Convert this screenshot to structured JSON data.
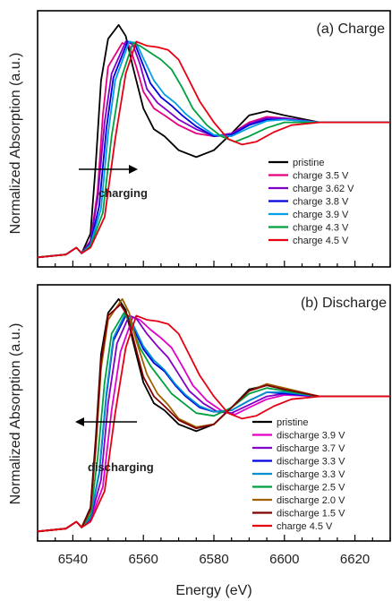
{
  "figure": {
    "xlabel": "Energy (eV)",
    "ylabel": "Normalized Absorption (a.u.)",
    "xticks": [
      6540,
      6560,
      6580,
      6600,
      6620
    ],
    "xlim": [
      6530,
      6630
    ]
  },
  "chart_data": [
    {
      "type": "line",
      "title": "(a) Charge",
      "annotation": "charging",
      "arrow_direction": "right",
      "xlim": [
        6530,
        6630
      ],
      "ylim": [
        0,
        1.75
      ],
      "legend_position": "bottom-right",
      "series": [
        {
          "name": "pristine",
          "color": "#000000",
          "x": [
            6530,
            6538,
            6541,
            6542.5,
            6545,
            6546.5,
            6548,
            6550,
            6553,
            6555,
            6557,
            6560,
            6563,
            6566,
            6570,
            6575,
            6580,
            6585,
            6590,
            6595,
            6600,
            6610,
            6620,
            6630
          ],
          "y": [
            0.03,
            0.05,
            0.1,
            0.06,
            0.2,
            0.7,
            1.3,
            1.6,
            1.7,
            1.62,
            1.4,
            1.1,
            0.95,
            0.9,
            0.8,
            0.75,
            0.8,
            0.92,
            1.05,
            1.08,
            1.05,
            1.0,
            1.0,
            1.0
          ]
        },
        {
          "name": "charge 3.5 V",
          "color": "#e4007f",
          "x": [
            6530,
            6538,
            6541,
            6542.5,
            6545,
            6547,
            6548.5,
            6550,
            6554,
            6556,
            6558,
            6560,
            6563,
            6566,
            6570,
            6575,
            6580,
            6585,
            6590,
            6595,
            6600,
            6610,
            6620,
            6630
          ],
          "y": [
            0.03,
            0.05,
            0.1,
            0.06,
            0.15,
            0.5,
            1.05,
            1.4,
            1.57,
            1.55,
            1.4,
            1.22,
            1.1,
            1.05,
            0.98,
            0.92,
            0.9,
            0.92,
            1.0,
            1.04,
            1.03,
            1.0,
            1.0,
            1.0
          ]
        },
        {
          "name": "charge 3.62 V",
          "color": "#7f00c8",
          "x": [
            6530,
            6538,
            6541,
            6542.5,
            6545,
            6547,
            6549,
            6551,
            6555,
            6557,
            6559,
            6561,
            6564,
            6567,
            6570,
            6575,
            6580,
            6585,
            6590,
            6595,
            6600,
            6610,
            6620,
            6630
          ],
          "y": [
            0.03,
            0.05,
            0.1,
            0.06,
            0.14,
            0.45,
            1.0,
            1.35,
            1.58,
            1.56,
            1.42,
            1.24,
            1.14,
            1.08,
            1.02,
            0.95,
            0.9,
            0.92,
            0.99,
            1.03,
            1.03,
            1.0,
            1.0,
            1.0
          ]
        },
        {
          "name": "charge 3.8 V",
          "color": "#0000dd",
          "x": [
            6530,
            6538,
            6541,
            6542.5,
            6545,
            6547.5,
            6549.5,
            6551.5,
            6555.5,
            6557.5,
            6559.5,
            6562,
            6565,
            6568,
            6571,
            6575,
            6580,
            6585,
            6590,
            6595,
            6600,
            6610,
            6620,
            6630
          ],
          "y": [
            0.03,
            0.05,
            0.1,
            0.06,
            0.13,
            0.4,
            0.95,
            1.32,
            1.58,
            1.57,
            1.44,
            1.28,
            1.18,
            1.12,
            1.05,
            0.97,
            0.9,
            0.91,
            0.98,
            1.02,
            1.02,
            1.0,
            1.0,
            1.0
          ]
        },
        {
          "name": "charge 3.9 V",
          "color": "#00a0e9",
          "x": [
            6530,
            6538,
            6541,
            6542.5,
            6545,
            6548,
            6550,
            6552,
            6556,
            6558,
            6560,
            6563,
            6566,
            6569,
            6572,
            6576,
            6580,
            6585,
            6590,
            6595,
            6600,
            6610,
            6620,
            6630
          ],
          "y": [
            0.03,
            0.05,
            0.1,
            0.06,
            0.12,
            0.38,
            0.92,
            1.3,
            1.58,
            1.57,
            1.46,
            1.3,
            1.2,
            1.14,
            1.06,
            0.98,
            0.91,
            0.9,
            0.96,
            1.01,
            1.02,
            1.0,
            1.0,
            1.0
          ]
        },
        {
          "name": "charge 4.3 V",
          "color": "#00a040",
          "x": [
            6530,
            6538,
            6541,
            6542.5,
            6545,
            6548.5,
            6551,
            6553.5,
            6557,
            6559,
            6562,
            6565,
            6568,
            6571,
            6574,
            6578,
            6582,
            6586,
            6590,
            6595,
            6600,
            6610,
            6620,
            6630
          ],
          "y": [
            0.03,
            0.05,
            0.1,
            0.06,
            0.11,
            0.35,
            0.9,
            1.3,
            1.57,
            1.55,
            1.5,
            1.45,
            1.38,
            1.25,
            1.1,
            0.98,
            0.9,
            0.86,
            0.9,
            0.96,
            1.0,
            1.0,
            1.0,
            1.0
          ]
        },
        {
          "name": "charge 4.5 V",
          "color": "#e60012",
          "x": [
            6530,
            6538,
            6541,
            6542.5,
            6545,
            6549,
            6552,
            6555,
            6558,
            6561,
            6564,
            6567,
            6570,
            6573,
            6576,
            6580,
            6584,
            6588,
            6592,
            6597,
            6602,
            6610,
            6620,
            6630
          ],
          "y": [
            0.03,
            0.05,
            0.1,
            0.06,
            0.1,
            0.32,
            0.88,
            1.35,
            1.58,
            1.55,
            1.54,
            1.52,
            1.45,
            1.3,
            1.15,
            1.0,
            0.88,
            0.84,
            0.86,
            0.93,
            0.98,
            1.0,
            1.0,
            1.0
          ]
        }
      ]
    },
    {
      "type": "line",
      "title": "(b) Discharge",
      "annotation": "discharging",
      "arrow_direction": "left",
      "xlim": [
        6530,
        6630
      ],
      "ylim": [
        0,
        1.75
      ],
      "legend_position": "bottom-right",
      "series": [
        {
          "name": "pristine",
          "color": "#000000",
          "x": [
            6530,
            6538,
            6541,
            6542.5,
            6545,
            6546.5,
            6548,
            6550,
            6553,
            6555,
            6557,
            6560,
            6563,
            6566,
            6570,
            6575,
            6580,
            6585,
            6590,
            6595,
            6600,
            6610,
            6620,
            6630
          ],
          "y": [
            0.03,
            0.05,
            0.1,
            0.06,
            0.2,
            0.7,
            1.3,
            1.6,
            1.7,
            1.62,
            1.4,
            1.1,
            0.95,
            0.9,
            0.8,
            0.75,
            0.8,
            0.92,
            1.05,
            1.08,
            1.05,
            1.0,
            1.0,
            1.0
          ]
        },
        {
          "name": "discharge 3.9 V",
          "color": "#e000c8",
          "x": [
            6530,
            6538,
            6541,
            6542.5,
            6545,
            6548.5,
            6551,
            6553.5,
            6557,
            6559,
            6562,
            6565,
            6568,
            6571,
            6574,
            6578,
            6582,
            6586,
            6590,
            6595,
            6600,
            6610,
            6620,
            6630
          ],
          "y": [
            0.03,
            0.05,
            0.1,
            0.06,
            0.11,
            0.35,
            0.9,
            1.32,
            1.57,
            1.55,
            1.48,
            1.42,
            1.35,
            1.22,
            1.08,
            0.97,
            0.9,
            0.87,
            0.92,
            0.98,
            1.01,
            1.0,
            1.0,
            1.0
          ]
        },
        {
          "name": "discharge 3.7 V",
          "color": "#8000c8",
          "x": [
            6530,
            6538,
            6541,
            6542.5,
            6545,
            6548,
            6550,
            6552.5,
            6556,
            6558,
            6561,
            6564,
            6567,
            6570,
            6573,
            6577,
            6581,
            6585,
            6590,
            6595,
            6600,
            6610,
            6620,
            6630
          ],
          "y": [
            0.03,
            0.05,
            0.1,
            0.06,
            0.12,
            0.4,
            0.95,
            1.38,
            1.58,
            1.56,
            1.45,
            1.36,
            1.28,
            1.16,
            1.04,
            0.95,
            0.89,
            0.88,
            0.94,
            1.0,
            1.02,
            1.0,
            1.0,
            1.0
          ]
        },
        {
          "name": "discharge 3.3 V",
          "color": "#0000dd",
          "x": [
            6530,
            6538,
            6541,
            6542.5,
            6545,
            6547.5,
            6549.5,
            6551.5,
            6555,
            6557,
            6560,
            6563,
            6566,
            6569,
            6572,
            6576,
            6580,
            6585,
            6590,
            6595,
            6600,
            6610,
            6620,
            6630
          ],
          "y": [
            0.03,
            0.05,
            0.1,
            0.06,
            0.13,
            0.45,
            1.0,
            1.4,
            1.58,
            1.5,
            1.34,
            1.24,
            1.18,
            1.08,
            1.0,
            0.92,
            0.89,
            0.9,
            0.97,
            1.03,
            1.02,
            1.0,
            1.0,
            1.0
          ]
        },
        {
          "name": "discharge 3.3 V",
          "color": "#0090d0",
          "x": [
            6530,
            6538,
            6541,
            6542.5,
            6545,
            6547.5,
            6549.5,
            6551.5,
            6555,
            6557,
            6560,
            6563,
            6566,
            6569,
            6572,
            6576,
            6580,
            6585,
            6590,
            6595,
            6600,
            6610,
            6620,
            6630
          ],
          "y": [
            0.03,
            0.05,
            0.1,
            0.06,
            0.13,
            0.46,
            1.02,
            1.42,
            1.6,
            1.52,
            1.36,
            1.26,
            1.19,
            1.09,
            1.01,
            0.93,
            0.89,
            0.9,
            0.97,
            1.03,
            1.03,
            1.0,
            1.0,
            1.0
          ]
        },
        {
          "name": "discharge 2.5 V",
          "color": "#00a040",
          "x": [
            6530,
            6538,
            6541,
            6542.5,
            6545,
            6547,
            6549,
            6551,
            6554.5,
            6556.5,
            6559,
            6562,
            6565,
            6568,
            6571,
            6575,
            6580,
            6585,
            6590,
            6595,
            6600,
            6610,
            6620,
            6630
          ],
          "y": [
            0.03,
            0.05,
            0.1,
            0.06,
            0.15,
            0.55,
            1.1,
            1.45,
            1.6,
            1.52,
            1.35,
            1.22,
            1.12,
            1.02,
            0.96,
            0.88,
            0.86,
            0.92,
            1.02,
            1.06,
            1.04,
            1.0,
            1.0,
            1.0
          ]
        },
        {
          "name": "discharge 2.0 V",
          "color": "#a06000",
          "x": [
            6530,
            6538,
            6541,
            6542.5,
            6545,
            6546.5,
            6548,
            6550,
            6554,
            6556,
            6558,
            6561,
            6564,
            6567,
            6570,
            6575,
            6580,
            6585,
            6590,
            6595,
            6600,
            6610,
            6620,
            6630
          ],
          "y": [
            0.03,
            0.05,
            0.1,
            0.06,
            0.18,
            0.62,
            1.2,
            1.55,
            1.7,
            1.6,
            1.4,
            1.16,
            1.02,
            0.94,
            0.84,
            0.78,
            0.8,
            0.92,
            1.04,
            1.09,
            1.06,
            1.0,
            1.0,
            1.0
          ]
        },
        {
          "name": "discharge 1.5 V",
          "color": "#800000",
          "x": [
            6530,
            6538,
            6541,
            6542.5,
            6545,
            6546.5,
            6548,
            6550,
            6553.5,
            6555.5,
            6557.5,
            6560,
            6563,
            6566,
            6570,
            6575,
            6580,
            6585,
            6590,
            6595,
            6600,
            6610,
            6620,
            6630
          ],
          "y": [
            0.03,
            0.05,
            0.1,
            0.06,
            0.19,
            0.66,
            1.25,
            1.58,
            1.66,
            1.58,
            1.38,
            1.14,
            1.0,
            0.93,
            0.83,
            0.77,
            0.8,
            0.92,
            1.04,
            1.08,
            1.05,
            1.0,
            1.0,
            1.0
          ]
        },
        {
          "name": "charge 4.5 V",
          "color": "#e60012",
          "x": [
            6530,
            6538,
            6541,
            6542.5,
            6545,
            6549,
            6552,
            6555,
            6558,
            6561,
            6564,
            6567,
            6570,
            6573,
            6576,
            6580,
            6584,
            6588,
            6592,
            6597,
            6602,
            6610,
            6620,
            6630
          ],
          "y": [
            0.03,
            0.05,
            0.1,
            0.06,
            0.1,
            0.32,
            0.88,
            1.35,
            1.58,
            1.55,
            1.54,
            1.52,
            1.45,
            1.3,
            1.15,
            1.0,
            0.88,
            0.84,
            0.86,
            0.93,
            0.98,
            1.0,
            1.0,
            1.0
          ]
        }
      ]
    }
  ]
}
